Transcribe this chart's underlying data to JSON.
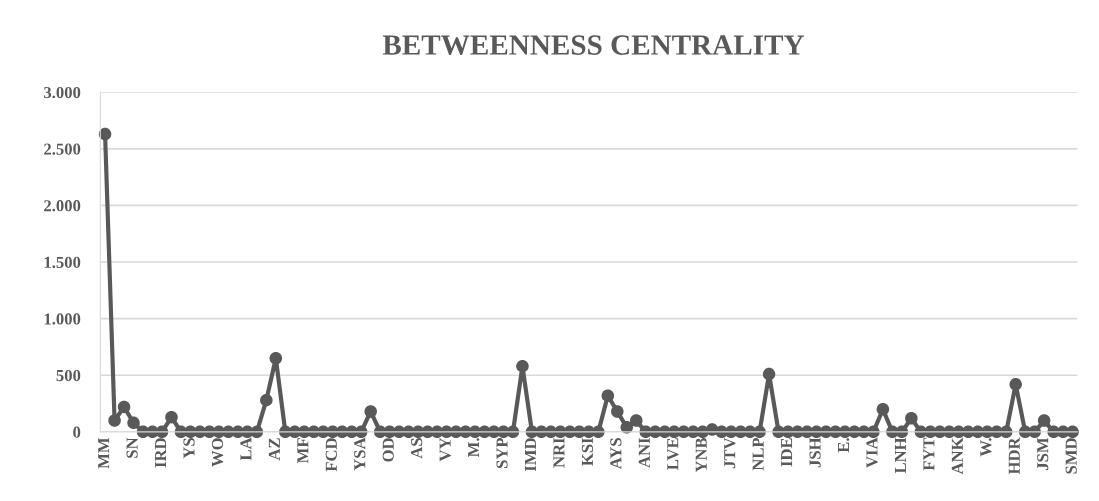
{
  "chart_data": {
    "type": "line",
    "title": "BETWEENNESS CENTRALITY",
    "categories": [
      "MM",
      null,
      null,
      "SN",
      null,
      null,
      "IRD",
      null,
      null,
      "YS",
      null,
      null,
      "WO",
      null,
      null,
      "LA",
      null,
      null,
      "AZ",
      null,
      null,
      "MF",
      null,
      null,
      "FCD",
      null,
      null,
      "YSA",
      null,
      null,
      "OD",
      null,
      null,
      "AS",
      null,
      null,
      "VY",
      null,
      null,
      "M.",
      null,
      null,
      "SYP",
      null,
      null,
      "IMD",
      null,
      null,
      "NRI",
      null,
      null,
      "KSI",
      null,
      null,
      "AYS",
      null,
      null,
      "ANI",
      null,
      null,
      "LVE",
      null,
      null,
      "YNB",
      null,
      null,
      "JTV",
      null,
      null,
      "NLP",
      null,
      null,
      "IDE",
      null,
      null,
      "JSH",
      null,
      null,
      "E.",
      null,
      null,
      "VIA",
      null,
      null,
      "LNH",
      null,
      null,
      "FYT",
      null,
      null,
      "ANK",
      null,
      null,
      "W.",
      null,
      null,
      "HDR",
      null,
      null,
      "JSM",
      null,
      null,
      "SMD"
    ],
    "series": [
      {
        "color": "#595959",
        "values": [
          2630,
          100,
          220,
          80,
          0,
          0,
          0,
          130,
          0,
          0,
          0,
          0,
          0,
          0,
          0,
          0,
          0,
          280,
          650,
          0,
          0,
          0,
          0,
          0,
          0,
          0,
          0,
          0,
          180,
          0,
          0,
          0,
          0,
          0,
          0,
          0,
          0,
          0,
          0,
          0,
          0,
          0,
          0,
          0,
          580,
          0,
          0,
          0,
          0,
          0,
          0,
          0,
          0,
          320,
          180,
          40,
          100,
          0,
          0,
          0,
          0,
          0,
          0,
          0,
          20,
          0,
          0,
          0,
          0,
          0,
          510,
          0,
          0,
          0,
          0,
          0,
          0,
          0,
          0,
          0,
          0,
          0,
          200,
          0,
          0,
          120,
          0,
          0,
          0,
          0,
          0,
          0,
          0,
          0,
          0,
          0,
          420,
          0,
          0,
          100,
          0,
          0,
          0
        ]
      }
    ],
    "ylim": [
      0,
      3000
    ],
    "yticks": [
      0,
      500,
      {
        "value": 1000,
        "label": "1.000"
      },
      {
        "value": 1500,
        "label": "1.500"
      },
      {
        "value": 2000,
        "label": "2.000"
      },
      {
        "value": 2500,
        "label": "2.500"
      },
      {
        "value": 3000,
        "label": "3.000"
      }
    ],
    "grid": "y",
    "marker": "circle",
    "line_style": "solid"
  }
}
